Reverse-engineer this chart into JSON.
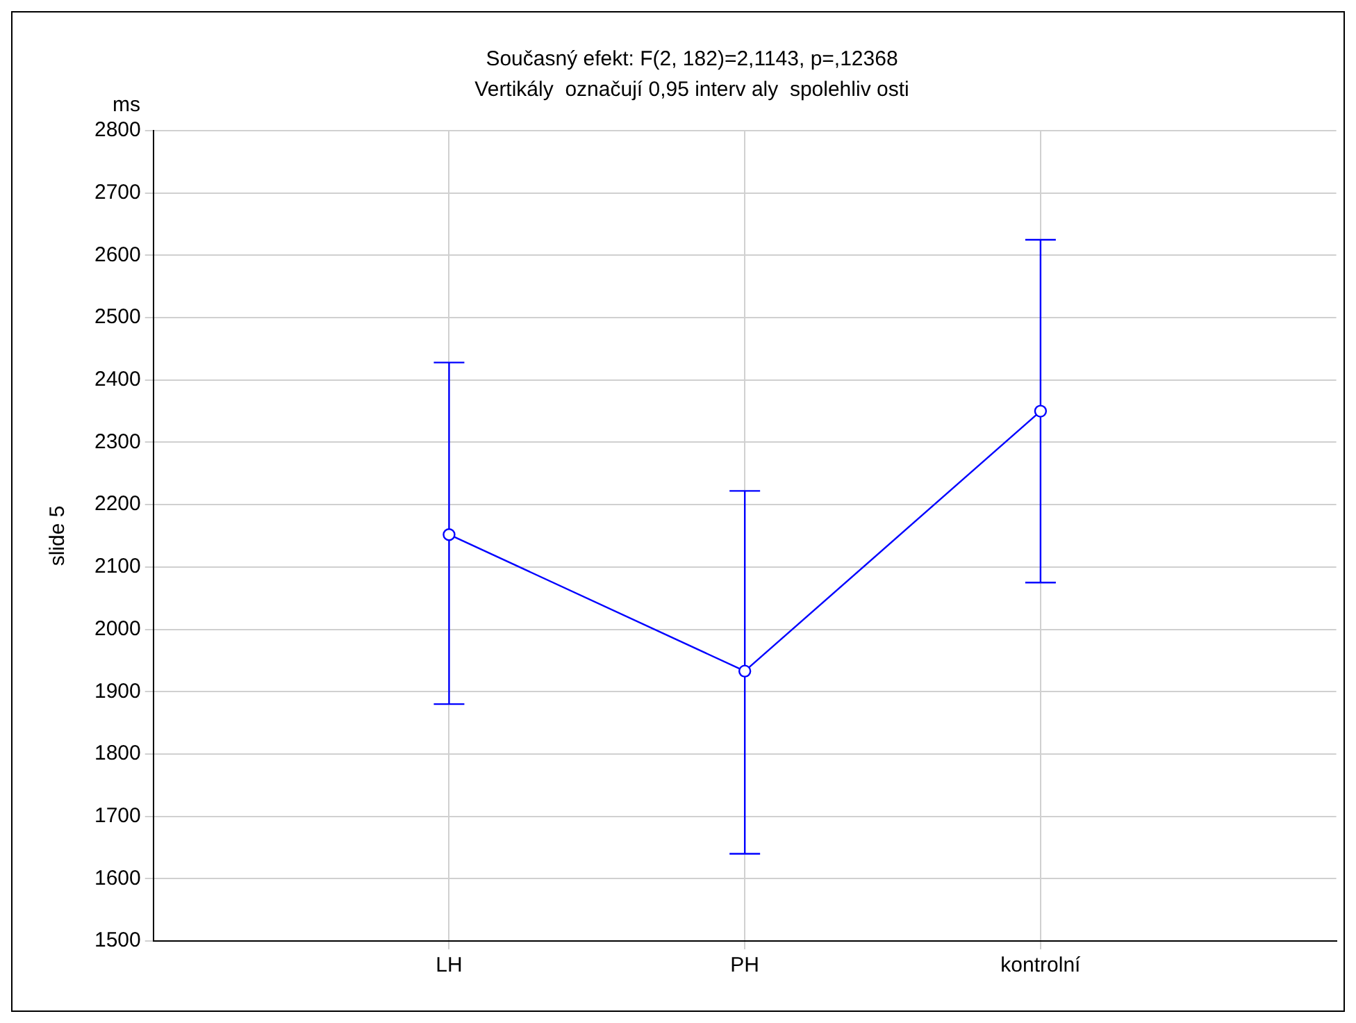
{
  "chart_data": {
    "type": "line",
    "title": "Současný efekt: F(2, 182)=2,1143, p=,12368",
    "subtitle": "Vertikály  označují 0,95 interv aly  spolehliv osti",
    "ylabel": "slide 5",
    "annotations": [
      "ms"
    ],
    "categories": [
      "LH",
      "PH",
      "kontrolní"
    ],
    "series": [
      {
        "color": "#0000ff",
        "values": [
          2152,
          1933,
          2350
        ],
        "errors": [
          [
            1880,
            2428
          ],
          [
            1640,
            2222
          ],
          [
            2075,
            2625
          ]
        ]
      }
    ],
    "ylim": [
      1500,
      2800
    ],
    "yticks": [
      1500,
      1600,
      1700,
      1800,
      1900,
      2000,
      2100,
      2200,
      2300,
      2400,
      2500,
      2600,
      2700,
      2800
    ],
    "grid": true,
    "legend": false,
    "marker": "circle",
    "line_style": "solid"
  }
}
